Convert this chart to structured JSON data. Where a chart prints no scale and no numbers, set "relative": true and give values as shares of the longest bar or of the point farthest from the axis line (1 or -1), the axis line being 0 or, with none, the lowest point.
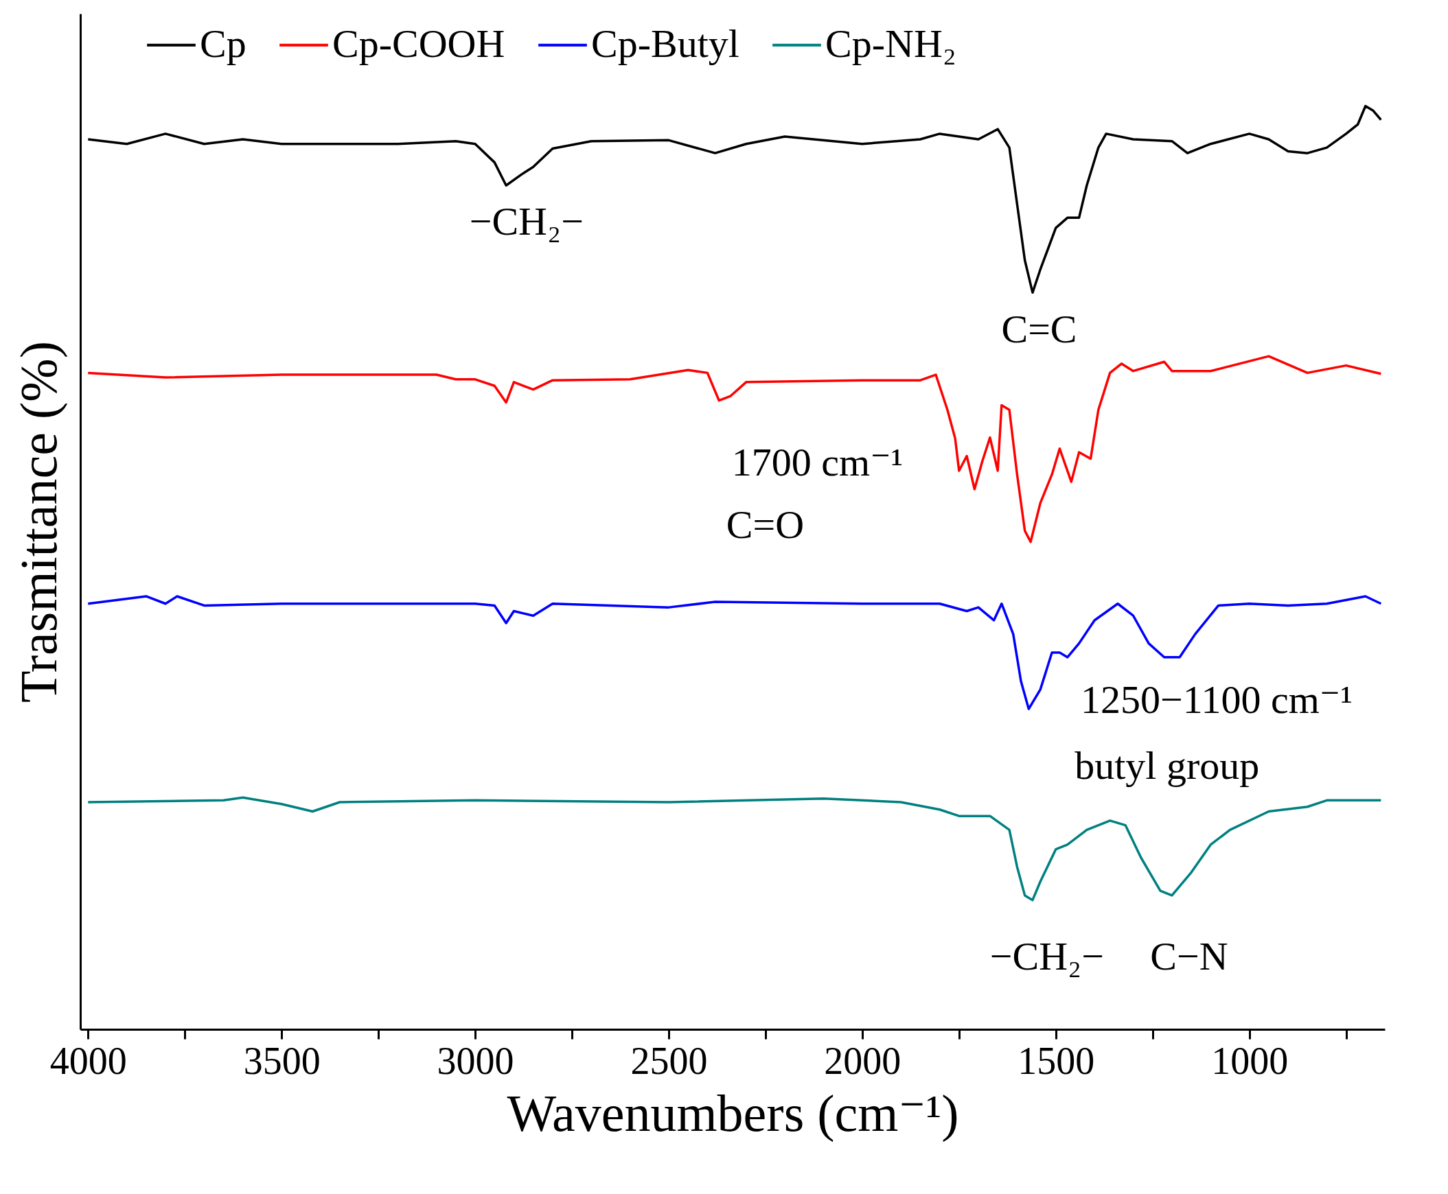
{
  "chart_data": {
    "type": "line",
    "relative": true,
    "xlabel": "Wavenumbers (cm⁻¹)",
    "ylabel": "Trasmittance (%)",
    "legend": "top",
    "xlim": [
      4020,
      650
    ],
    "xticks": [
      4000,
      {
        "value": 3750,
        "label": null
      },
      3500,
      {
        "value": 3250,
        "label": null
      },
      3000,
      {
        "value": 2750,
        "label": null
      },
      2500,
      {
        "value": 2250,
        "label": null
      },
      2000,
      {
        "value": 1750,
        "label": null
      },
      1500,
      {
        "value": 1250,
        "label": null
      },
      1000,
      {
        "value": 750,
        "label": null
      }
    ],
    "series": [
      {
        "name": "Cp",
        "color": "#000000",
        "x": [
          4000,
          3900,
          3800,
          3700,
          3600,
          3500,
          3200,
          3050,
          3000,
          2950,
          2920,
          2880,
          2850,
          2800,
          2700,
          2500,
          2380,
          2300,
          2200,
          2000,
          1850,
          1800,
          1700,
          1650,
          1620,
          1600,
          1580,
          1560,
          1540,
          1500,
          1470,
          1440,
          1420,
          1390,
          1370,
          1300,
          1200,
          1160,
          1100,
          1000,
          950,
          900,
          850,
          800,
          750,
          720,
          700,
          680,
          660
        ],
        "values": [
          0.964,
          0.959,
          0.97,
          0.959,
          0.964,
          0.959,
          0.959,
          0.962,
          0.959,
          0.939,
          0.914,
          0.926,
          0.934,
          0.954,
          0.962,
          0.963,
          0.949,
          0.959,
          0.967,
          0.959,
          0.964,
          0.97,
          0.964,
          0.975,
          0.955,
          0.894,
          0.833,
          0.798,
          0.823,
          0.868,
          0.879,
          0.879,
          0.914,
          0.955,
          0.97,
          0.964,
          0.962,
          0.949,
          0.959,
          0.97,
          0.964,
          0.951,
          0.949,
          0.955,
          0.97,
          0.98,
          1,
          0.995,
          0.985
        ]
      },
      {
        "name": "Cp-COOH",
        "color": "#ff0000",
        "x": [
          4000,
          3800,
          3500,
          3100,
          3050,
          3000,
          2950,
          2920,
          2900,
          2850,
          2800,
          2600,
          2450,
          2400,
          2370,
          2340,
          2300,
          2000,
          1850,
          1810,
          1780,
          1760,
          1750,
          1730,
          1710,
          1690,
          1670,
          1650,
          1640,
          1620,
          1600,
          1580,
          1565,
          1540,
          1510,
          1490,
          1460,
          1440,
          1410,
          1390,
          1360,
          1330,
          1300,
          1220,
          1200,
          1100,
          950,
          850,
          750,
          660
        ],
        "values": [
          0.711,
          0.706,
          0.709,
          0.709,
          0.704,
          0.704,
          0.697,
          0.679,
          0.701,
          0.693,
          0.703,
          0.704,
          0.714,
          0.711,
          0.681,
          0.686,
          0.701,
          0.703,
          0.703,
          0.709,
          0.671,
          0.64,
          0.605,
          0.621,
          0.585,
          0.615,
          0.641,
          0.605,
          0.676,
          0.671,
          0.601,
          0.54,
          0.528,
          0.57,
          0.601,
          0.629,
          0.593,
          0.625,
          0.618,
          0.671,
          0.711,
          0.721,
          0.713,
          0.723,
          0.713,
          0.713,
          0.729,
          0.711,
          0.719,
          0.71
        ]
      },
      {
        "name": "Cp-Butyl",
        "color": "#0000ff",
        "x": [
          4000,
          3850,
          3800,
          3770,
          3700,
          3500,
          3000,
          2950,
          2920,
          2900,
          2850,
          2800,
          2500,
          2380,
          2000,
          1800,
          1730,
          1700,
          1660,
          1640,
          1610,
          1590,
          1570,
          1540,
          1510,
          1490,
          1470,
          1440,
          1400,
          1340,
          1300,
          1260,
          1220,
          1180,
          1140,
          1080,
          1000,
          900,
          800,
          700,
          660
        ],
        "values": [
          0.461,
          0.469,
          0.461,
          0.469,
          0.459,
          0.461,
          0.461,
          0.459,
          0.44,
          0.453,
          0.448,
          0.461,
          0.457,
          0.463,
          0.461,
          0.461,
          0.453,
          0.457,
          0.443,
          0.461,
          0.428,
          0.377,
          0.347,
          0.368,
          0.408,
          0.408,
          0.403,
          0.418,
          0.443,
          0.461,
          0.448,
          0.418,
          0.403,
          0.403,
          0.428,
          0.459,
          0.461,
          0.459,
          0.461,
          0.469,
          0.461
        ]
      },
      {
        "name": "Cp-NH₂",
        "color": "#008080",
        "x": [
          4000,
          3650,
          3600,
          3500,
          3420,
          3350,
          3000,
          2500,
          2100,
          1900,
          1800,
          1750,
          1670,
          1620,
          1600,
          1580,
          1560,
          1540,
          1500,
          1470,
          1420,
          1360,
          1320,
          1280,
          1230,
          1200,
          1150,
          1100,
          1050,
          950,
          850,
          800,
          660
        ],
        "values": [
          0.246,
          0.248,
          0.251,
          0.244,
          0.236,
          0.246,
          0.248,
          0.246,
          0.25,
          0.246,
          0.238,
          0.231,
          0.231,
          0.216,
          0.176,
          0.145,
          0.14,
          0.16,
          0.195,
          0.2,
          0.216,
          0.226,
          0.221,
          0.186,
          0.15,
          0.145,
          0.17,
          0.2,
          0.216,
          0.236,
          0.241,
          0.248,
          0.248
        ]
      }
    ],
    "annotations": [
      "−CH₂−",
      "C=C",
      "1700 cm⁻¹",
      "C=O",
      "1250−1100 cm⁻¹",
      "butyl group",
      "−CH₂−",
      "C−N"
    ]
  }
}
